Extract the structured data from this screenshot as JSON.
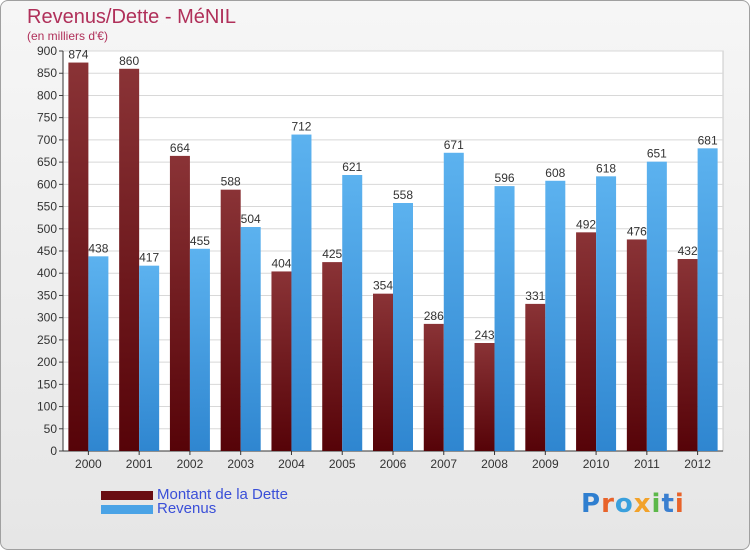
{
  "header": {
    "title": "Revenus/Dette - MéNIL",
    "subtitle": "(en milliers d'€)"
  },
  "legend": {
    "items": [
      {
        "label": "Montant de la Dette",
        "color": "#6a0d12"
      },
      {
        "label": "Revenus",
        "color": "#4aa3e6"
      }
    ]
  },
  "logo": {
    "text": "Proxiti",
    "colors": [
      "#2f7fd0",
      "#e8632a",
      "#3aa0dd",
      "#f2a22a",
      "#5cb84a",
      "#3a7fd0",
      "#e8632a"
    ]
  },
  "chart_data": {
    "type": "bar",
    "categories": [
      "2000",
      "2001",
      "2002",
      "2003",
      "2004",
      "2005",
      "2006",
      "2007",
      "2008",
      "2009",
      "2010",
      "2011",
      "2012"
    ],
    "series": [
      {
        "name": "Montant de la Dette",
        "color": "#6a0d12",
        "values": [
          874,
          860,
          664,
          588,
          404,
          425,
          354,
          286,
          243,
          331,
          492,
          476,
          432
        ]
      },
      {
        "name": "Revenus",
        "color": "#4aa3e6",
        "values": [
          438,
          417,
          455,
          504,
          712,
          621,
          558,
          671,
          596,
          608,
          618,
          651,
          681
        ]
      }
    ],
    "ylim": [
      0,
      900
    ],
    "yticks": [
      0,
      50,
      100,
      150,
      200,
      250,
      300,
      350,
      400,
      450,
      500,
      550,
      600,
      650,
      700,
      750,
      800,
      850,
      900
    ],
    "grid": true,
    "legend_position": "bottom-left"
  }
}
